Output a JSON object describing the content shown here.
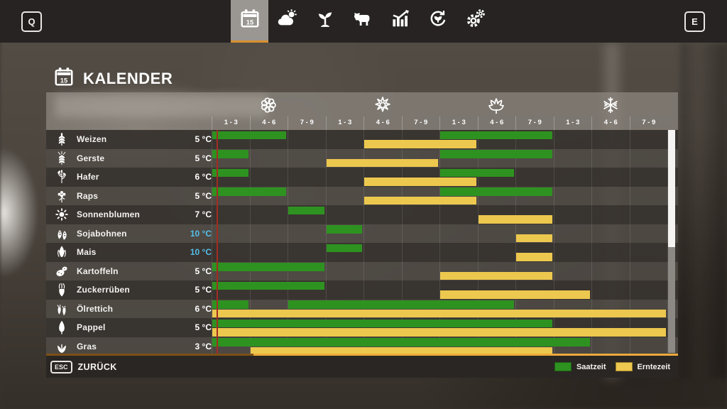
{
  "topbar": {
    "left_key": "Q",
    "right_key": "E",
    "tabs": [
      {
        "name": "calendar",
        "icon": "calendar-icon",
        "active": true
      },
      {
        "name": "weather",
        "icon": "weather-icon",
        "active": false
      },
      {
        "name": "crops",
        "icon": "seedling-icon",
        "active": false
      },
      {
        "name": "animals",
        "icon": "cow-icon",
        "active": false
      },
      {
        "name": "statistics",
        "icon": "bar-chart-icon",
        "active": false
      },
      {
        "name": "rotation",
        "icon": "cycle-icon",
        "active": false
      },
      {
        "name": "settings",
        "icon": "gears-icon",
        "active": false
      }
    ]
  },
  "page": {
    "title": "KALENDER",
    "title_icon": "calendar-icon"
  },
  "calendar": {
    "seasons": [
      {
        "name": "spring",
        "icon": "flower-icon",
        "periods": [
          "1 - 3",
          "4 - 6",
          "7 - 9"
        ]
      },
      {
        "name": "summer",
        "icon": "sun-icon",
        "periods": [
          "1 - 3",
          "4 - 6",
          "7 - 9"
        ]
      },
      {
        "name": "autumn",
        "icon": "leaf-icon",
        "periods": [
          "1 - 3",
          "4 - 6",
          "7 - 9"
        ]
      },
      {
        "name": "winter",
        "icon": "snowflake-icon",
        "periods": [
          "1 - 3",
          "4 - 6",
          "7 - 9"
        ]
      }
    ],
    "rows": [
      {
        "crop": "Weizen",
        "icon": "wheat-icon",
        "temp": "5 °C",
        "temp_cold": false,
        "sow": [
          [
            0,
            1
          ],
          [
            6,
            8
          ]
        ],
        "harvest": [
          [
            4,
            6
          ]
        ]
      },
      {
        "crop": "Gerste",
        "icon": "barley-icon",
        "temp": "5 °C",
        "temp_cold": false,
        "sow": [
          [
            0,
            0
          ],
          [
            6,
            8
          ]
        ],
        "harvest": [
          [
            3,
            5
          ]
        ]
      },
      {
        "crop": "Hafer",
        "icon": "oat-icon",
        "temp": "6 °C",
        "temp_cold": false,
        "sow": [
          [
            0,
            0
          ],
          [
            6,
            7
          ]
        ],
        "harvest": [
          [
            4,
            6
          ]
        ]
      },
      {
        "crop": "Raps",
        "icon": "canola-icon",
        "temp": "5 °C",
        "temp_cold": false,
        "sow": [
          [
            0,
            1
          ],
          [
            6,
            8
          ]
        ],
        "harvest": [
          [
            4,
            6
          ]
        ]
      },
      {
        "crop": "Sonnenblumen",
        "icon": "sunflower-icon",
        "temp": "7 °C",
        "temp_cold": false,
        "sow": [
          [
            2,
            2
          ]
        ],
        "harvest": [
          [
            7,
            8
          ]
        ]
      },
      {
        "crop": "Sojabohnen",
        "icon": "soybean-icon",
        "temp": "10 °C",
        "temp_cold": true,
        "sow": [
          [
            3,
            3
          ]
        ],
        "harvest": [
          [
            8,
            8
          ]
        ]
      },
      {
        "crop": "Mais",
        "icon": "corn-icon",
        "temp": "10 °C",
        "temp_cold": true,
        "sow": [
          [
            3,
            3
          ]
        ],
        "harvest": [
          [
            8,
            8
          ]
        ]
      },
      {
        "crop": "Kartoffeln",
        "icon": "potato-icon",
        "temp": "5 °C",
        "temp_cold": false,
        "sow": [
          [
            0,
            2
          ]
        ],
        "harvest": [
          [
            6,
            8
          ]
        ]
      },
      {
        "crop": "Zuckerrüben",
        "icon": "sugarbeet-icon",
        "temp": "5 °C",
        "temp_cold": false,
        "sow": [
          [
            0,
            2
          ]
        ],
        "harvest": [
          [
            6,
            9
          ]
        ]
      },
      {
        "crop": "Ölrettich",
        "icon": "radish-icon",
        "temp": "6 °C",
        "temp_cold": false,
        "sow": [
          [
            0,
            0
          ],
          [
            2,
            7
          ]
        ],
        "harvest": [
          [
            0,
            11
          ]
        ]
      },
      {
        "crop": "Pappel",
        "icon": "poplar-icon",
        "temp": "5 °C",
        "temp_cold": false,
        "sow": [
          [
            0,
            8
          ]
        ],
        "harvest": [
          [
            0,
            11
          ]
        ]
      },
      {
        "crop": "Gras",
        "icon": "grass-icon",
        "temp": "3 °C",
        "temp_cold": false,
        "sow": [
          [
            0,
            9
          ]
        ],
        "harvest": [
          [
            1,
            8
          ]
        ]
      }
    ],
    "legend": [
      {
        "label": "Saatzeit",
        "color": "#2e9220"
      },
      {
        "label": "Erntezeit",
        "color": "#edc84e"
      }
    ],
    "colors": {
      "sow": "#2e9220",
      "harvest": "#edc84e",
      "today_line": "#a32d22",
      "cold_temp": "#55bfe9"
    }
  },
  "footer": {
    "key": "ESC",
    "label": "ZURÜCK"
  }
}
